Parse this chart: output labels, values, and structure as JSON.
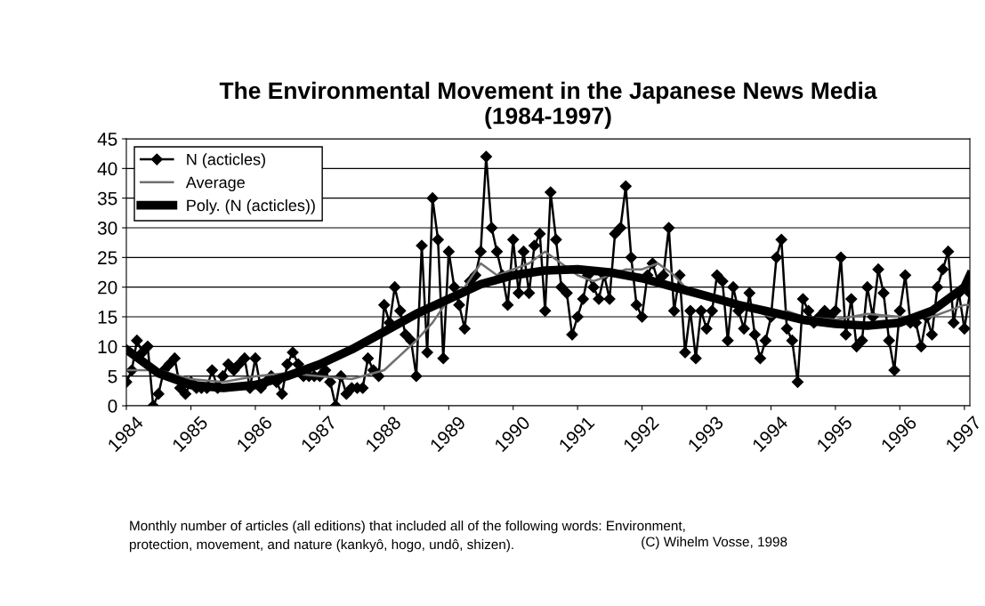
{
  "chart_data": {
    "type": "line",
    "title": "The Environmental Movement in the Japanese News Media\n(1984-1997)",
    "xlim": [
      "1984-01",
      "1997-02"
    ],
    "xticks": [
      {
        "value": "1984-01",
        "label": "1984"
      },
      {
        "value": "1985-01",
        "label": "1985"
      },
      {
        "value": "1986-01",
        "label": "1986"
      },
      {
        "value": "1987-01",
        "label": "1987"
      },
      {
        "value": "1988-01",
        "label": "1988"
      },
      {
        "value": "1989-01",
        "label": "1989"
      },
      {
        "value": "1990-01",
        "label": "1990"
      },
      {
        "value": "1991-01",
        "label": "1991"
      },
      {
        "value": "1992-01",
        "label": "1992"
      },
      {
        "value": "1993-01",
        "label": "1993"
      },
      {
        "value": "1994-01",
        "label": "1994"
      },
      {
        "value": "1995-01",
        "label": "1995"
      },
      {
        "value": "1996-01",
        "label": "1996"
      },
      {
        "value": "1997-01",
        "label": "1997"
      }
    ],
    "ylim": [
      0,
      45
    ],
    "yticks": [
      0,
      5,
      10,
      15,
      20,
      25,
      30,
      35,
      40,
      45
    ],
    "grid": "y",
    "legend": "top left",
    "series": [
      {
        "name": "N (acticles)",
        "color": "#000000",
        "marker": "diamond",
        "x": [
          "1984-01",
          "1984-02",
          "1984-03",
          "1984-04",
          "1984-05",
          "1984-06",
          "1984-07",
          "1984-08",
          "1984-09",
          "1984-10",
          "1984-11",
          "1984-12",
          "1985-01",
          "1985-02",
          "1985-03",
          "1985-04",
          "1985-05",
          "1985-06",
          "1985-07",
          "1985-08",
          "1985-09",
          "1985-10",
          "1985-11",
          "1985-12",
          "1986-01",
          "1986-02",
          "1986-03",
          "1986-04",
          "1986-05",
          "1986-06",
          "1986-07",
          "1986-08",
          "1986-09",
          "1986-10",
          "1986-11",
          "1986-12",
          "1987-01",
          "1987-02",
          "1987-03",
          "1987-04",
          "1987-05",
          "1987-06",
          "1987-07",
          "1987-08",
          "1987-09",
          "1987-10",
          "1987-11",
          "1987-12",
          "1988-01",
          "1988-02",
          "1988-03",
          "1988-04",
          "1988-05",
          "1988-06",
          "1988-07",
          "1988-08",
          "1988-09",
          "1988-10",
          "1988-11",
          "1988-12",
          "1989-01",
          "1989-02",
          "1989-03",
          "1989-04",
          "1989-05",
          "1989-06",
          "1989-07",
          "1989-08",
          "1989-09",
          "1989-10",
          "1989-11",
          "1989-12",
          "1990-01",
          "1990-02",
          "1990-03",
          "1990-04",
          "1990-05",
          "1990-06",
          "1990-07",
          "1990-08",
          "1990-09",
          "1990-10",
          "1990-11",
          "1990-12",
          "1991-01",
          "1991-02",
          "1991-03",
          "1991-04",
          "1991-05",
          "1991-06",
          "1991-07",
          "1991-08",
          "1991-09",
          "1991-10",
          "1991-11",
          "1991-12",
          "1992-01",
          "1992-02",
          "1992-03",
          "1992-04",
          "1992-05",
          "1992-06",
          "1992-07",
          "1992-08",
          "1992-09",
          "1992-10",
          "1992-11",
          "1992-12",
          "1993-01",
          "1993-02",
          "1993-03",
          "1993-04",
          "1993-05",
          "1993-06",
          "1993-07",
          "1993-08",
          "1993-09",
          "1993-10",
          "1993-11",
          "1993-12",
          "1994-01",
          "1994-02",
          "1994-03",
          "1994-04",
          "1994-05",
          "1994-06",
          "1994-07",
          "1994-08",
          "1994-09",
          "1994-10",
          "1994-11",
          "1994-12",
          "1995-01",
          "1995-02",
          "1995-03",
          "1995-04",
          "1995-05",
          "1995-06",
          "1995-07",
          "1995-08",
          "1995-09",
          "1995-10",
          "1995-11",
          "1995-12",
          "1996-01",
          "1996-02",
          "1996-03",
          "1996-04",
          "1996-05",
          "1996-06",
          "1996-07",
          "1996-08",
          "1996-09",
          "1996-10",
          "1996-11",
          "1996-12",
          "1997-01",
          "1997-02"
        ],
        "values": [
          4,
          6,
          11,
          9,
          10,
          0,
          2,
          6,
          7,
          8,
          3,
          2,
          4,
          3,
          3,
          3,
          6,
          3,
          5,
          7,
          6,
          7,
          8,
          3,
          8,
          3,
          4,
          5,
          4,
          2,
          7,
          9,
          7,
          5,
          5,
          5,
          5,
          6,
          4,
          0,
          5,
          2,
          3,
          3,
          3,
          8,
          6,
          5,
          17,
          14,
          20,
          16,
          12,
          11,
          5,
          27,
          9,
          35,
          28,
          8,
          26,
          20,
          17,
          13,
          21,
          22,
          26,
          42,
          30,
          26,
          22,
          17,
          28,
          19,
          26,
          19,
          27,
          29,
          16,
          36,
          28,
          20,
          19,
          12,
          15,
          18,
          22,
          20,
          18,
          22,
          18,
          29,
          30,
          37,
          25,
          17,
          15,
          22,
          24,
          21,
          22,
          30,
          16,
          22,
          9,
          16,
          8,
          16,
          13,
          16,
          22,
          21,
          11,
          20,
          16,
          13,
          19,
          12,
          8,
          11,
          15,
          25,
          28,
          13,
          11,
          4,
          18,
          16,
          14,
          15,
          16,
          15,
          16,
          25,
          12,
          18,
          10,
          11,
          20,
          15,
          23,
          19,
          11,
          6,
          16,
          22,
          14,
          14,
          10,
          15,
          12,
          20,
          23,
          26,
          14,
          19,
          13,
          19
        ]
      },
      {
        "name": "Average",
        "color": "#707070",
        "x": [
          "1984-01",
          "1984-07",
          "1985-01",
          "1985-07",
          "1986-01",
          "1986-07",
          "1987-01",
          "1987-07",
          "1988-01",
          "1988-07",
          "1988-10",
          "1989-01",
          "1989-04",
          "1989-07",
          "1989-10",
          "1990-01",
          "1990-04",
          "1990-07",
          "1990-10",
          "1991-01",
          "1991-04",
          "1991-07",
          "1991-10",
          "1992-01",
          "1992-04",
          "1992-07",
          "1992-10",
          "1993-01",
          "1993-07",
          "1994-01",
          "1994-04",
          "1994-07",
          "1995-01",
          "1995-07",
          "1996-01",
          "1996-07",
          "1996-10",
          "1997-01",
          "1997-02"
        ],
        "values": [
          6,
          6,
          4.5,
          4,
          5,
          5.5,
          5,
          4.5,
          6,
          11,
          14,
          18,
          20,
          24,
          22,
          23,
          24,
          26,
          24,
          22,
          21,
          22,
          23,
          23,
          24,
          22,
          19,
          18,
          17,
          15,
          16,
          15,
          14.5,
          15.5,
          15,
          15,
          16,
          17,
          17
        ]
      },
      {
        "name": "Poly. (N (acticles))",
        "color": "#000000",
        "x": [
          "1984-01",
          "1984-07",
          "1985-01",
          "1985-07",
          "1986-01",
          "1986-07",
          "1987-01",
          "1987-07",
          "1988-01",
          "1988-07",
          "1989-01",
          "1989-07",
          "1990-01",
          "1990-07",
          "1991-01",
          "1991-07",
          "1992-01",
          "1992-07",
          "1993-01",
          "1993-07",
          "1994-01",
          "1994-07",
          "1995-01",
          "1995-07",
          "1996-01",
          "1996-07",
          "1997-01",
          "1997-02"
        ],
        "values": [
          9.5,
          5.5,
          3.5,
          3,
          3.5,
          5,
          7,
          9.5,
          12.5,
          15.5,
          18,
          20.5,
          22,
          22.8,
          23,
          22.5,
          21.5,
          20,
          18.5,
          17,
          15.8,
          14.5,
          13.8,
          13.5,
          14,
          16,
          20,
          22
        ]
      }
    ],
    "annotations": [
      "Monthly number of articles (all editions) that included all of the following words: Environment,\nprotection, movement, and nature (kankyô, hogo, undô, shizen).",
      "(C) Wihelm Vosse, 1998"
    ]
  }
}
